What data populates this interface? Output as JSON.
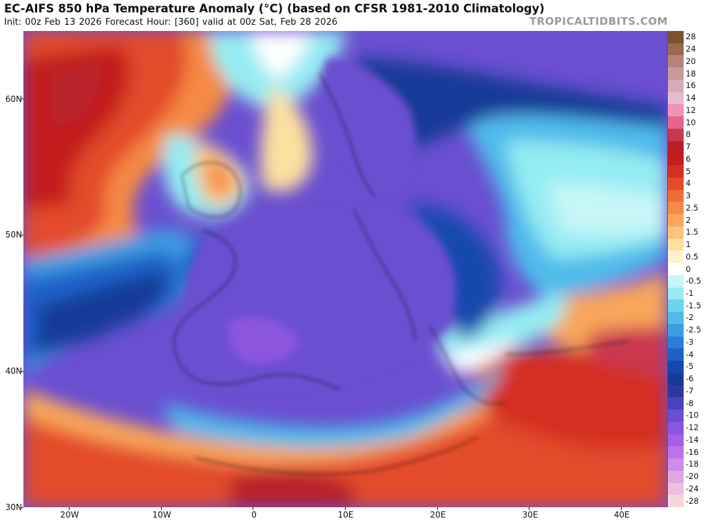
{
  "header": {
    "title": "EC-AIFS 850 hPa Temperature Anomaly (°C) (based on CFSR 1981-2010 Climatology)",
    "subtitle": "Init: 00z Feb 13 2026   Forecast Hour: [360]   valid at 00z Sat, Feb 28 2026",
    "brand": "TROPICALTIDBITS.COM"
  },
  "map": {
    "extent": {
      "lon": [
        -25,
        45
      ],
      "lat": [
        30,
        65
      ]
    },
    "lat_ticks": [
      {
        "value": 60,
        "label": "60N"
      },
      {
        "value": 50,
        "label": "50N"
      },
      {
        "value": 40,
        "label": "40N"
      },
      {
        "value": 30,
        "label": "30N"
      }
    ],
    "lon_ticks": [
      {
        "value": -20,
        "label": "20W"
      },
      {
        "value": -10,
        "label": "10W"
      },
      {
        "value": 0,
        "label": "0"
      },
      {
        "value": 10,
        "label": "10E"
      },
      {
        "value": 20,
        "label": "20E"
      },
      {
        "value": 30,
        "label": "30E"
      },
      {
        "value": 40,
        "label": "40E"
      }
    ]
  },
  "colorbar": {
    "levels": [
      {
        "label": "28",
        "color": "#7a5230"
      },
      {
        "label": "24",
        "color": "#9a6a4a"
      },
      {
        "label": "20",
        "color": "#b5837a"
      },
      {
        "label": "18",
        "color": "#c99a9c"
      },
      {
        "label": "16",
        "color": "#d8a9b7"
      },
      {
        "label": "14",
        "color": "#e5bccd"
      },
      {
        "label": "12",
        "color": "#ef93b7"
      },
      {
        "label": "10",
        "color": "#e56490"
      },
      {
        "label": "8",
        "color": "#c9384f"
      },
      {
        "label": "7",
        "color": "#b8202c"
      },
      {
        "label": "6",
        "color": "#c41d1d"
      },
      {
        "label": "5",
        "color": "#d52f22"
      },
      {
        "label": "4",
        "color": "#e34b2a"
      },
      {
        "label": "3",
        "color": "#ee6c36"
      },
      {
        "label": "2.5",
        "color": "#f58a45"
      },
      {
        "label": "2",
        "color": "#f9a65a"
      },
      {
        "label": "1.5",
        "color": "#fbc47a"
      },
      {
        "label": "1",
        "color": "#fde09f"
      },
      {
        "label": "0.5",
        "color": "#fef3cc"
      },
      {
        "label": "0",
        "color": "#ffffff"
      },
      {
        "label": "-0.5",
        "color": "#c6f6f7"
      },
      {
        "label": "-1",
        "color": "#94ecf2"
      },
      {
        "label": "-1.5",
        "color": "#6cd5ee"
      },
      {
        "label": "-2",
        "color": "#4fbbea"
      },
      {
        "label": "-2.5",
        "color": "#3d9de2"
      },
      {
        "label": "-3",
        "color": "#2c7fd7"
      },
      {
        "label": "-4",
        "color": "#1f62c7"
      },
      {
        "label": "-5",
        "color": "#1549ad"
      },
      {
        "label": "-6",
        "color": "#183a96"
      },
      {
        "label": "-7",
        "color": "#2c3aa0"
      },
      {
        "label": "-8",
        "color": "#4a43bb"
      },
      {
        "label": "-10",
        "color": "#6a4fd0"
      },
      {
        "label": "-12",
        "color": "#8b56de"
      },
      {
        "label": "-14",
        "color": "#a45fe6"
      },
      {
        "label": "-16",
        "color": "#bb72ea"
      },
      {
        "label": "-18",
        "color": "#d08ce6"
      },
      {
        "label": "-20",
        "color": "#e0a8e2"
      },
      {
        "label": "-24",
        "color": "#ebc1dc"
      },
      {
        "label": "-28",
        "color": "#f3d8d8"
      }
    ]
  }
}
